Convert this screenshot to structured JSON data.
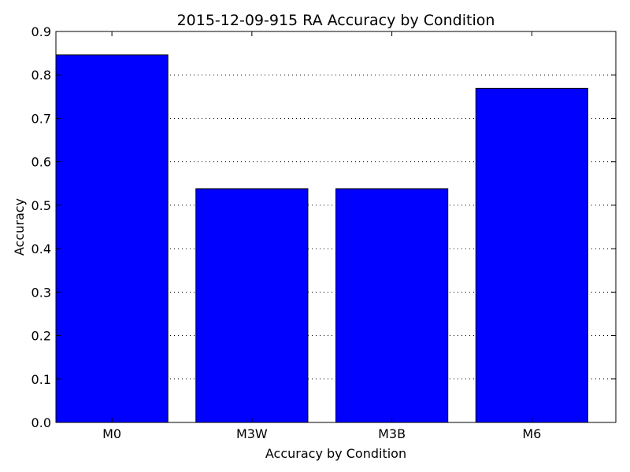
{
  "chart_data": {
    "type": "bar",
    "title": "2015-12-09-915 RA Accuracy by Condition",
    "xlabel": "Accuracy by Condition",
    "ylabel": "Accuracy",
    "categories": [
      "M0",
      "M3W",
      "M3B",
      "M6"
    ],
    "values": [
      0.846,
      0.538,
      0.538,
      0.769
    ],
    "ylim": [
      0,
      0.9
    ],
    "yticks": [
      0.0,
      0.1,
      0.2,
      0.3,
      0.4,
      0.5,
      0.6,
      0.7,
      0.8,
      0.9
    ],
    "ytick_labels": [
      "0.0",
      "0.1",
      "0.2",
      "0.3",
      "0.4",
      "0.5",
      "0.6",
      "0.7",
      "0.8",
      "0.9"
    ],
    "grid": "y-dotted",
    "legend": "none",
    "bar_color": "#0000ff",
    "edge_color": "#000000"
  }
}
